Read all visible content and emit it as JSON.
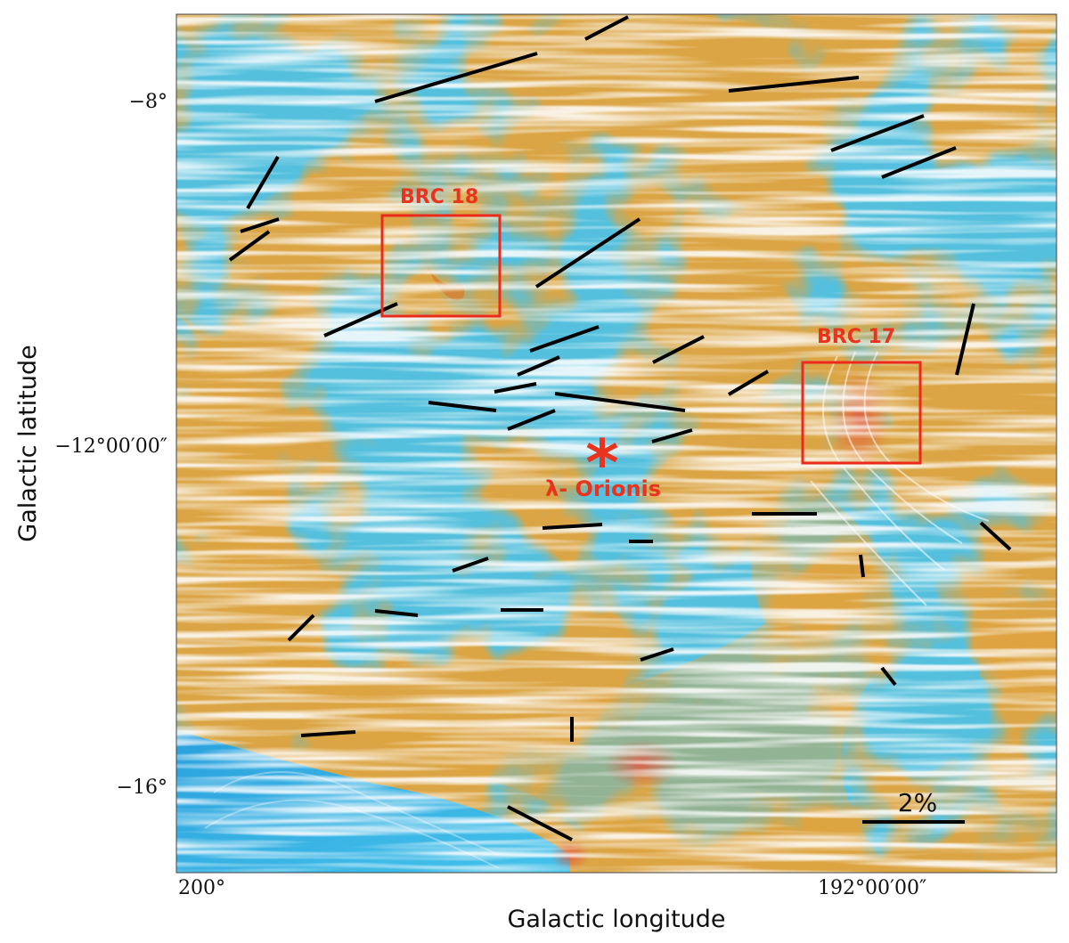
{
  "axes": {
    "xlabel": "Galactic longitude",
    "ylabel": "Galactic latitude",
    "x_ticks": [
      "200°",
      "192°00′00″"
    ],
    "y_ticks": [
      "−8°",
      "−12°00′00″",
      "−16°"
    ]
  },
  "annotations": {
    "brc18": "BRC 18",
    "brc17": "BRC 17",
    "star_label": "λ- Orionis",
    "star_marker": "*"
  },
  "scale_bar": {
    "label": "2%",
    "fraction": 0.02
  },
  "colors": {
    "background_low": "#49bfe0",
    "background_high": "#e0a53a",
    "annotation": "#e8341f",
    "vectors": "#000000"
  }
}
